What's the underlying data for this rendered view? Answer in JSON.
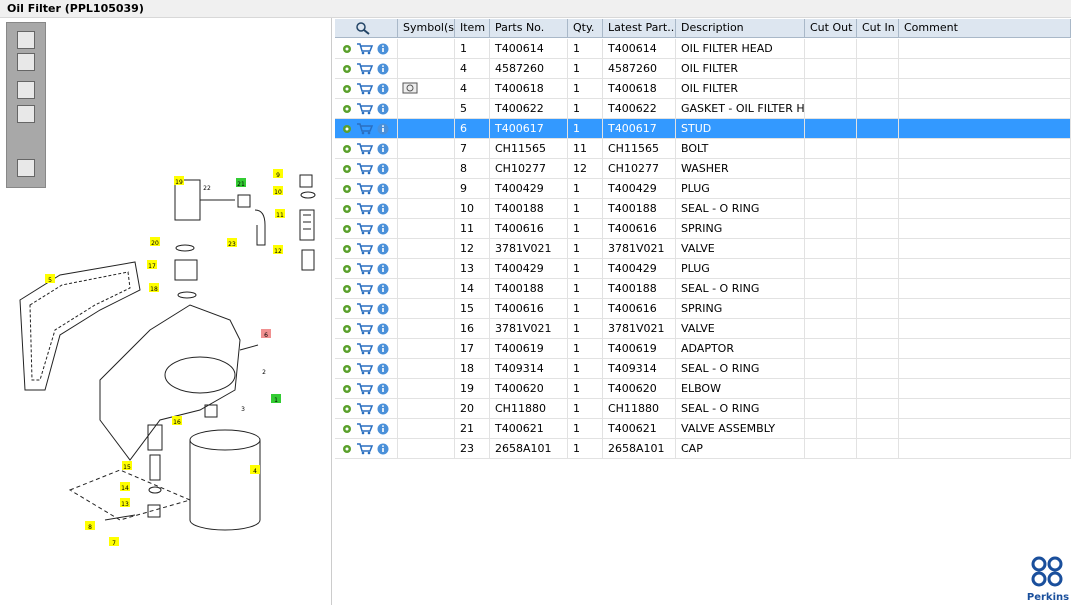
{
  "header": {
    "title": "Oil Filter (PPL105039)"
  },
  "diagram": {
    "callouts": [
      "19",
      "22",
      "21",
      "9",
      "10",
      "11",
      "23",
      "12",
      "20",
      "17",
      "18",
      "5",
      "6",
      "2",
      "3",
      "1",
      "16",
      "15",
      "14",
      "13",
      "8",
      "7",
      "4"
    ]
  },
  "table": {
    "columns": [
      "Symbol(s)",
      "Item",
      "Parts No.",
      "Qty.",
      "Latest Part...",
      "Description",
      "Cut Out",
      "Cut In",
      "Comment"
    ],
    "rows": [
      [
        "1",
        "T400614",
        "1",
        "T400614",
        "OIL FILTER HEAD"
      ],
      [
        "4",
        "4587260",
        "1",
        "4587260",
        "OIL FILTER"
      ],
      [
        "4",
        "T400618",
        "1",
        "T400618",
        "OIL FILTER"
      ],
      [
        "5",
        "T400622",
        "1",
        "T400622",
        "GASKET - OIL FILTER HEA"
      ],
      [
        "6",
        "T400617",
        "1",
        "T400617",
        "STUD"
      ],
      [
        "7",
        "CH11565",
        "11",
        "CH11565",
        "BOLT"
      ],
      [
        "8",
        "CH10277",
        "12",
        "CH10277",
        "WASHER"
      ],
      [
        "9",
        "T400429",
        "1",
        "T400429",
        "PLUG"
      ],
      [
        "10",
        "T400188",
        "1",
        "T400188",
        "SEAL - O RING"
      ],
      [
        "11",
        "T400616",
        "1",
        "T400616",
        "SPRING"
      ],
      [
        "12",
        "3781V021",
        "1",
        "3781V021",
        "VALVE"
      ],
      [
        "13",
        "T400429",
        "1",
        "T400429",
        "PLUG"
      ],
      [
        "14",
        "T400188",
        "1",
        "T400188",
        "SEAL - O RING"
      ],
      [
        "15",
        "T400616",
        "1",
        "T400616",
        "SPRING"
      ],
      [
        "16",
        "3781V021",
        "1",
        "3781V021",
        "VALVE"
      ],
      [
        "17",
        "T400619",
        "1",
        "T400619",
        "ADAPTOR"
      ],
      [
        "18",
        "T409314",
        "1",
        "T409314",
        "SEAL - O RING"
      ],
      [
        "19",
        "T400620",
        "1",
        "T400620",
        "ELBOW"
      ],
      [
        "20",
        "CH11880",
        "1",
        "CH11880",
        "SEAL - O RING"
      ],
      [
        "21",
        "T400621",
        "1",
        "T400621",
        "VALVE ASSEMBLY"
      ],
      [
        "23",
        "2658A101",
        "1",
        "2658A101",
        "CAP"
      ]
    ]
  },
  "logo": {
    "text": "Perkins"
  }
}
